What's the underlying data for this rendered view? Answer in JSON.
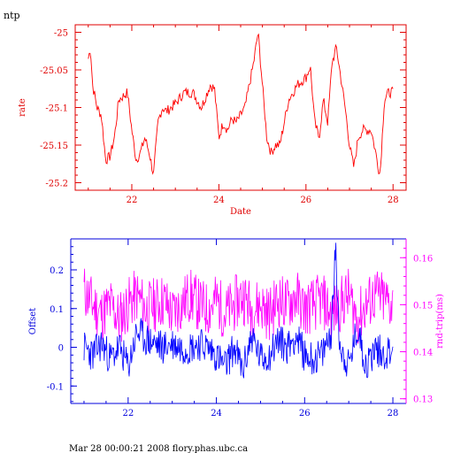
{
  "page": {
    "corner_label": "ntp",
    "footer": "Mar 28 00:00:21 2008 flory.phas.ubc.ca"
  },
  "colors": {
    "top_axis": "#e00000",
    "rate_line": "#ff0000",
    "bottom_axis": "#0000dd",
    "offset_line": "#0000ff",
    "right_axis": "#ff00ff",
    "roundtrip_line": "#ff00ff"
  },
  "chart_data": [
    {
      "type": "line",
      "xlabel": "Date",
      "ylabel": "rate",
      "xlim": [
        20.7,
        28.3
      ],
      "ylim": [
        -25.21,
        -24.99
      ],
      "xticks": [
        22,
        24,
        26,
        28
      ],
      "yticks": [
        -25,
        -25.05,
        -25.1,
        -25.15,
        -25.2
      ],
      "ytick_labels": [
        "-25",
        "-25.05",
        "-25.1",
        "-25.15",
        "-25.2"
      ],
      "series": [
        {
          "values_x": [
            21.0,
            21.05,
            21.1,
            21.2,
            21.3,
            21.4,
            21.5,
            21.6,
            21.7,
            21.8,
            21.9,
            22.0,
            22.1,
            22.2,
            22.3,
            22.4,
            22.5,
            22.6,
            22.7,
            22.8,
            22.9,
            23.0,
            23.2,
            23.4,
            23.6,
            23.8,
            23.9,
            24.0,
            24.1,
            24.2,
            24.3,
            24.4,
            24.6,
            24.8,
            24.9,
            25.0,
            25.1,
            25.2,
            25.3,
            25.4,
            25.5,
            25.6,
            25.8,
            26.0,
            26.1,
            26.2,
            26.3,
            26.4,
            26.5,
            26.6,
            26.7,
            26.8,
            26.9,
            27.0,
            27.1,
            27.2,
            27.3,
            27.5,
            27.7,
            27.8,
            27.9,
            28.0
          ],
          "values_y": [
            -25.035,
            -25.02,
            -25.07,
            -25.1,
            -25.11,
            -25.17,
            -25.165,
            -25.14,
            -25.09,
            -25.085,
            -25.08,
            -25.13,
            -25.17,
            -25.16,
            -25.14,
            -25.16,
            -25.19,
            -25.12,
            -25.1,
            -25.105,
            -25.1,
            -25.095,
            -25.08,
            -25.08,
            -25.1,
            -25.07,
            -25.075,
            -25.14,
            -25.12,
            -25.13,
            -25.115,
            -25.12,
            -25.1,
            -25.04,
            -25.0,
            -25.07,
            -25.14,
            -25.16,
            -25.15,
            -25.15,
            -25.12,
            -25.09,
            -25.07,
            -25.06,
            -25.045,
            -25.12,
            -25.14,
            -25.09,
            -25.12,
            -25.04,
            -25.02,
            -25.06,
            -25.1,
            -25.15,
            -25.18,
            -25.14,
            -25.13,
            -25.13,
            -25.19,
            -25.09,
            -25.08,
            -25.08
          ]
        }
      ]
    },
    {
      "type": "line",
      "xlim": [
        20.7,
        28.3
      ],
      "ylim": [
        -0.145,
        0.28
      ],
      "ylabel": "Offset",
      "xticks": [
        22,
        24,
        26,
        28
      ],
      "yticks": [
        -0.1,
        0,
        0.1,
        0.2
      ],
      "ytick_labels": [
        "-0.1",
        "0",
        "0.1",
        "0.2"
      ],
      "y2label": "rnd-trip(ms)",
      "y2lim": [
        0.129,
        0.164
      ],
      "y2ticks": [
        0.13,
        0.14,
        0.15,
        0.16
      ],
      "y2tick_labels": [
        "0.13",
        "0.14",
        "0.15",
        "0.16"
      ],
      "series": [
        {
          "axis": "left",
          "values_x": [
            21.0,
            21.2,
            21.4,
            21.6,
            21.8,
            22.0,
            22.2,
            22.4,
            22.6,
            22.8,
            23.0,
            23.2,
            23.4,
            23.6,
            23.8,
            24.0,
            24.2,
            24.4,
            24.6,
            24.8,
            25.0,
            25.2,
            25.4,
            25.6,
            25.8,
            26.0,
            26.2,
            26.4,
            26.6,
            26.7,
            26.8,
            27.0,
            27.2,
            27.4,
            27.6,
            27.8,
            28.0
          ],
          "values_y": [
            0.0,
            -0.02,
            0.01,
            -0.03,
            0.0,
            -0.05,
            0.04,
            0.02,
            0.01,
            0.0,
            0.01,
            0.0,
            0.0,
            0.01,
            0.0,
            -0.02,
            -0.05,
            0.0,
            -0.06,
            0.03,
            -0.03,
            -0.02,
            0.02,
            0.0,
            0.03,
            -0.02,
            -0.03,
            -0.02,
            0.04,
            0.25,
            0.0,
            -0.05,
            0.05,
            -0.05,
            0.0,
            -0.02,
            0.0
          ]
        },
        {
          "axis": "right",
          "values_x": [
            21.0,
            21.2,
            21.4,
            21.6,
            21.8,
            22.0,
            22.2,
            22.4,
            22.6,
            22.8,
            23.0,
            23.2,
            23.4,
            23.6,
            23.8,
            24.0,
            24.2,
            24.4,
            24.6,
            24.8,
            25.0,
            25.2,
            25.4,
            25.6,
            25.8,
            26.0,
            26.2,
            26.4,
            26.6,
            26.8,
            27.0,
            27.2,
            27.4,
            27.6,
            27.8,
            28.0
          ],
          "values_y": [
            0.153,
            0.15,
            0.148,
            0.15,
            0.147,
            0.15,
            0.152,
            0.149,
            0.15,
            0.151,
            0.148,
            0.15,
            0.152,
            0.15,
            0.149,
            0.151,
            0.148,
            0.15,
            0.152,
            0.149,
            0.15,
            0.148,
            0.151,
            0.15,
            0.152,
            0.149,
            0.15,
            0.151,
            0.148,
            0.15,
            0.152,
            0.147,
            0.15,
            0.152,
            0.151,
            0.15
          ]
        }
      ]
    }
  ]
}
